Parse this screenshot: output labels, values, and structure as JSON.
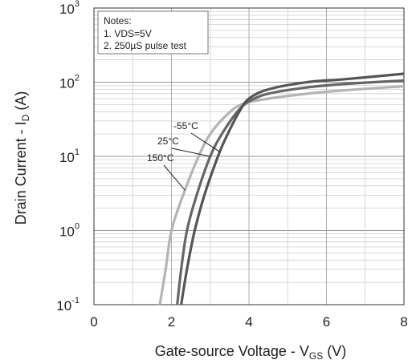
{
  "chart_data": {
    "type": "line",
    "xlabel": {
      "main": "Gate-source Voltage - V",
      "sub": "GS",
      "unit": " (V)"
    },
    "ylabel": {
      "main": "Drain Current - I",
      "sub": "D",
      "unit": " (A)"
    },
    "xlim": [
      0,
      8
    ],
    "ylim": [
      0.1,
      1000
    ],
    "yscale": "log",
    "x_ticks": [
      "0",
      "2",
      "4",
      "6",
      "8"
    ],
    "y_ticks": [
      {
        "base": "10",
        "exp": "-1"
      },
      {
        "base": "10",
        "exp": "0"
      },
      {
        "base": "10",
        "exp": "1"
      },
      {
        "base": "10",
        "exp": "2"
      },
      {
        "base": "10",
        "exp": "3"
      }
    ],
    "grid": true,
    "notes": {
      "title": "Notes:",
      "lines": [
        "1. VDS=5V",
        "2. 250µS  pulse test"
      ]
    },
    "series": [
      {
        "name": "-55°C",
        "color": "#555555",
        "points": [
          [
            2.25,
            0.1
          ],
          [
            2.4,
            0.3
          ],
          [
            2.6,
            1
          ],
          [
            2.85,
            3
          ],
          [
            3.2,
            10
          ],
          [
            3.45,
            20
          ],
          [
            3.75,
            40
          ],
          [
            4.0,
            60
          ],
          [
            4.5,
            80
          ],
          [
            5.5,
            100
          ],
          [
            6.5,
            110
          ],
          [
            8,
            130
          ]
        ]
      },
      {
        "name": "25°C",
        "color": "#666666",
        "points": [
          [
            2.15,
            0.1
          ],
          [
            2.25,
            0.3
          ],
          [
            2.4,
            1
          ],
          [
            2.65,
            3
          ],
          [
            3.0,
            10
          ],
          [
            3.3,
            20
          ],
          [
            3.7,
            40
          ],
          [
            4.0,
            55
          ],
          [
            4.5,
            70
          ],
          [
            5.5,
            85
          ],
          [
            6.5,
            95
          ],
          [
            8,
            105
          ]
        ]
      },
      {
        "name": "150°C",
        "color": "#b4b4b4",
        "points": [
          [
            1.7,
            0.1
          ],
          [
            1.85,
            0.3
          ],
          [
            2.0,
            1
          ],
          [
            2.3,
            3
          ],
          [
            2.7,
            10
          ],
          [
            3.0,
            20
          ],
          [
            3.4,
            35
          ],
          [
            3.8,
            50
          ],
          [
            4.5,
            60
          ],
          [
            5.5,
            70
          ],
          [
            6.5,
            78
          ],
          [
            8,
            88
          ]
        ]
      }
    ]
  }
}
